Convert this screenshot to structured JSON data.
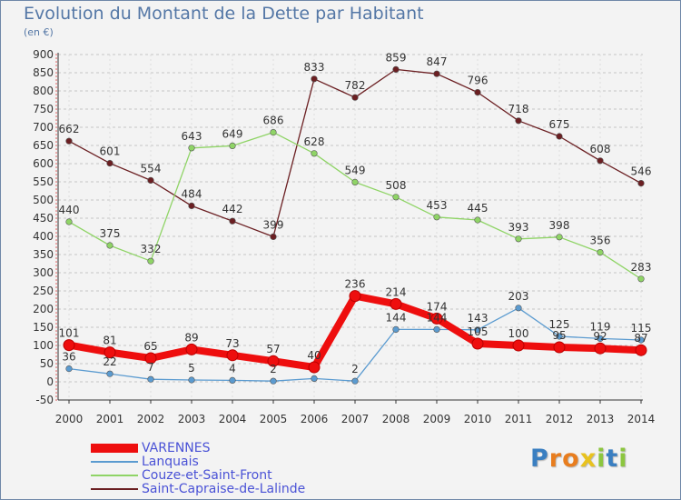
{
  "header": {
    "title": "Evolution du Montant de la Dette par Habitant",
    "subtitle": "(en €)"
  },
  "logo": {
    "text": "Proxiti",
    "letters": [
      "P",
      "r",
      "o",
      "x",
      "i",
      "t",
      "i"
    ],
    "colors": [
      "#3a7fc1",
      "#e87d1e",
      "#e87d1e",
      "#e8c21e",
      "#8cc63f",
      "#3a7fc1",
      "#8cc63f"
    ]
  },
  "chart_data": {
    "type": "line",
    "title": "Evolution du Montant de la Dette par Habitant",
    "subtitle": "(en €)",
    "xlabel": "",
    "ylabel": "",
    "x": [
      "2000",
      "2001",
      "2002",
      "2003",
      "2004",
      "2005",
      "2006",
      "2007",
      "2008",
      "2009",
      "2010",
      "2011",
      "2012",
      "2013",
      "2014"
    ],
    "ylim": [
      -50,
      900
    ],
    "yticks": [
      -50,
      0,
      50,
      100,
      150,
      200,
      250,
      300,
      350,
      400,
      450,
      500,
      550,
      600,
      650,
      700,
      750,
      800,
      850,
      900
    ],
    "grid": "horizontal dashed",
    "legend_position": "bottom-left",
    "series": [
      {
        "name": "Saint-Capraise-de-Lalinde",
        "color": "#6b1f22",
        "values": [
          662,
          601,
          554,
          484,
          442,
          399,
          833,
          782,
          859,
          847,
          796,
          718,
          675,
          608,
          546
        ],
        "labels": [
          "662",
          "601",
          "554",
          "484",
          "442",
          "399",
          "833",
          "782",
          "859",
          "847",
          "796",
          "718",
          "675",
          "608",
          "546"
        ]
      },
      {
        "name": "Couze-et-Saint-Front",
        "color": "#8fd466",
        "values": [
          440,
          375,
          332,
          643,
          649,
          686,
          628,
          549,
          508,
          453,
          445,
          393,
          398,
          356,
          283
        ],
        "labels": [
          "440",
          "375",
          "332",
          "643",
          "649",
          "686",
          "628",
          "549",
          "508",
          "453",
          "445",
          "393",
          "398",
          "356",
          "283"
        ]
      },
      {
        "name": "Lanquais",
        "color": "#5b9bd0",
        "values": [
          36,
          22,
          7,
          5,
          4,
          2,
          9,
          2,
          144,
          144,
          143,
          203,
          125,
          119,
          115
        ],
        "labels": [
          "36",
          "22",
          "7",
          "5",
          "4",
          "2",
          "",
          "2",
          "144",
          "144",
          "143",
          "203",
          "125",
          "119",
          "115"
        ]
      },
      {
        "name": "VARENNES",
        "color": "#ee0e0e",
        "values": [
          101,
          81,
          65,
          89,
          73,
          57,
          40,
          236,
          214,
          174,
          105,
          100,
          95,
          92,
          87
        ],
        "labels": [
          "101",
          "81",
          "65",
          "89",
          "73",
          "57",
          "40",
          "236",
          "214",
          "174",
          "105",
          "100",
          "95",
          "92",
          "87"
        ]
      }
    ]
  }
}
